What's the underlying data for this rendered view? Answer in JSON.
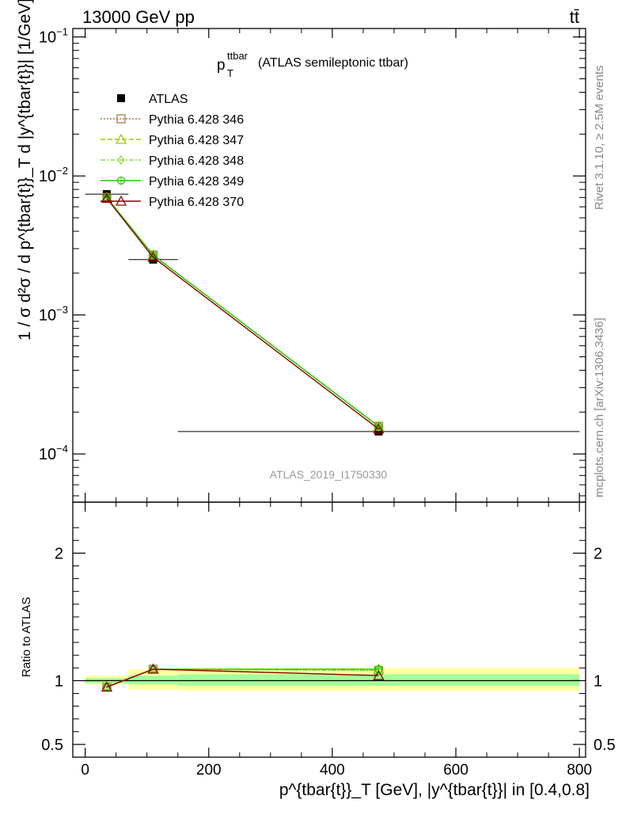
{
  "header": {
    "energy_label": "13000 GeV pp",
    "process_label": "tt̄"
  },
  "side_labels": {
    "rivet": "Rivet 3.1.10, ≥ 2.5M events",
    "mcplots": "mcplots.cern.ch [arXiv:1306.3436]"
  },
  "chart_data": {
    "type": "line",
    "title_main": "p",
    "title_sup": "ttbar",
    "title_sub": "T",
    "title_rest": "(ATLAS semileptonic ttbar)",
    "analysis_id": "ATLAS_2019_I1750330",
    "ylabel": "1 / σ d²σ / d p^{tbar{t}}_T d |y^{tbar{t}}| [1/GeV]",
    "xlabel": "p^{tbar{t}}_T [GeV], |y^{tbar{t}}| in [0.4,0.8]",
    "xlim": [
      -20,
      810
    ],
    "ylim": [
      4.5e-05,
      0.115
    ],
    "yscale": "log",
    "x_ticks": [
      "0",
      "200",
      "400",
      "600",
      "800"
    ],
    "y_ticks": [
      "10^-4",
      "10^-3",
      "10^-2",
      "10^-1"
    ],
    "x": [
      35,
      110,
      475
    ],
    "data": {
      "name": "ATLAS",
      "values": [
        0.0074,
        0.0025,
        0.000145
      ],
      "bins": [
        [
          0,
          70
        ],
        [
          70,
          150
        ],
        [
          150,
          800
        ]
      ]
    },
    "series": [
      {
        "name": "Pythia 6.428 346",
        "color": "#b07a3a",
        "marker": "square-open",
        "dash": "2,2",
        "values": [
          0.007,
          0.0027,
          0.000158
        ]
      },
      {
        "name": "Pythia 6.428 347",
        "color": "#99cc00",
        "marker": "triangle-open",
        "dash": "6,3",
        "values": [
          0.007,
          0.0027,
          0.000158
        ]
      },
      {
        "name": "Pythia 6.428 348",
        "color": "#88dd44",
        "marker": "diamond-open",
        "dash": "6,2,2,2",
        "values": [
          0.007,
          0.0027,
          0.000157
        ]
      },
      {
        "name": "Pythia 6.428 349",
        "color": "#22cc00",
        "marker": "circle-cross",
        "dash": "",
        "values": [
          0.007,
          0.0027,
          0.000158
        ]
      },
      {
        "name": "Pythia 6.428 370",
        "color": "#8b0000",
        "marker": "triangle-open",
        "dash": "",
        "values": [
          0.0069,
          0.0026,
          0.000151
        ]
      }
    ],
    "ratio": {
      "ylabel": "Ratio to ATLAS",
      "ylim": [
        0.4,
        2.4
      ],
      "y_ticks": [
        "0.5",
        "1",
        "2"
      ],
      "band_bins": [
        [
          0,
          70
        ],
        [
          70,
          150
        ],
        [
          150,
          800
        ]
      ],
      "stat_band": [
        [
          0.98,
          1.02
        ],
        [
          0.97,
          1.04
        ],
        [
          0.96,
          1.05
        ]
      ],
      "total_band": [
        [
          0.97,
          1.04
        ],
        [
          0.93,
          1.09
        ],
        [
          0.92,
          1.1
        ]
      ],
      "series_values": [
        [
          0.95,
          1.09,
          1.08
        ],
        [
          0.95,
          1.09,
          1.09
        ],
        [
          0.95,
          1.09,
          1.08
        ],
        [
          0.95,
          1.09,
          1.09
        ],
        [
          0.95,
          1.09,
          1.04
        ]
      ]
    }
  }
}
